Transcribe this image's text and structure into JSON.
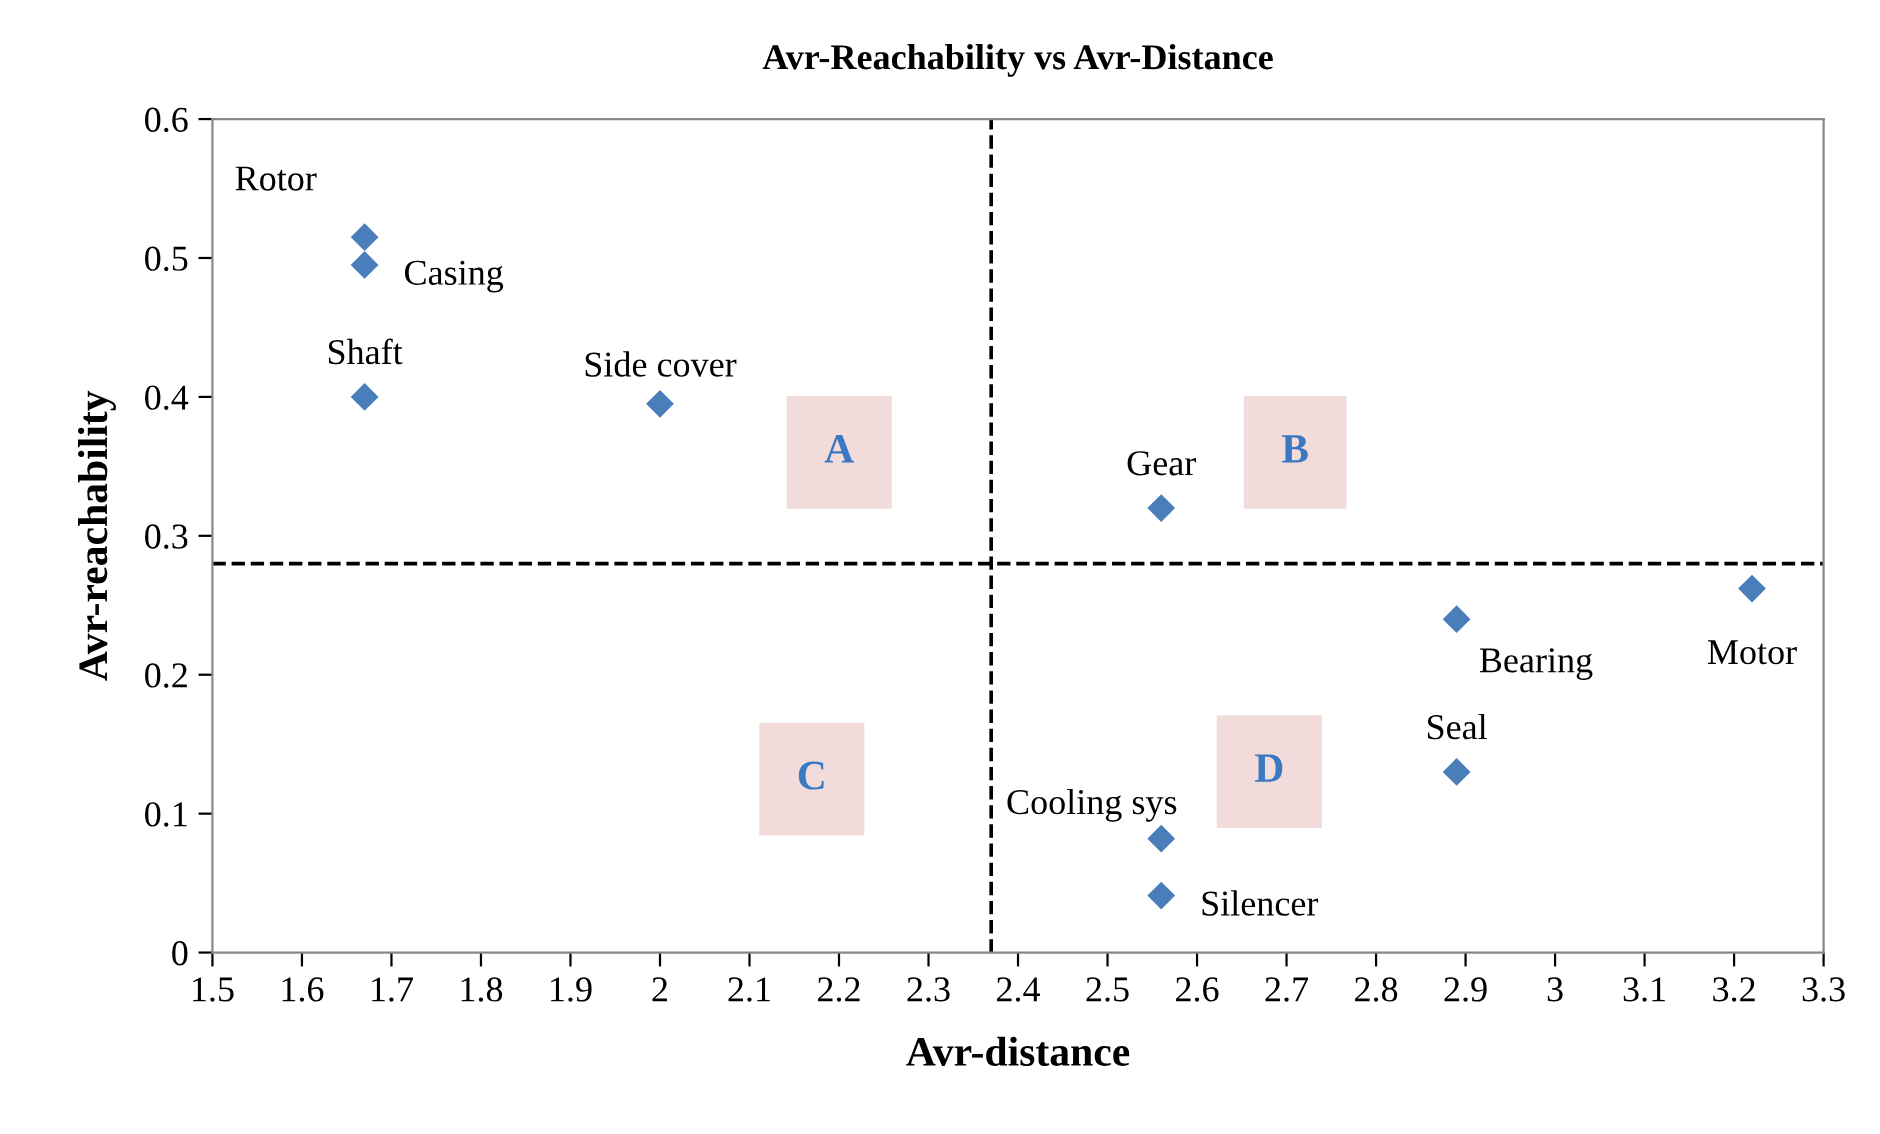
{
  "chart_data": {
    "type": "scatter",
    "title": "Avr-Reachability vs Avr-Distance",
    "xlabel": "Avr-distance",
    "ylabel": "Avr-reachability",
    "series": [
      {
        "color": "#4a7ebb",
        "x": [
          1.67,
          1.67,
          1.67,
          2.0,
          2.56,
          2.89,
          3.22,
          2.89,
          2.56,
          2.56
        ],
        "values": [
          0.515,
          0.495,
          0.4,
          0.395,
          0.32,
          0.24,
          0.262,
          0.13,
          0.082,
          0.041
        ],
        "value_labels": [
          "Rotor",
          "Casing",
          "Shaft",
          "Side cover",
          "Gear",
          "Bearing",
          "Motor",
          "Seal",
          "Cooling sys",
          "Silencer"
        ]
      }
    ],
    "marker": "diamond",
    "xlim": [
      1.5,
      3.3
    ],
    "ylim": [
      0,
      0.6
    ],
    "xticks": [
      1.5,
      1.6,
      1.7,
      1.8,
      1.9,
      {
        "value": 2,
        "label": "2"
      },
      2.1,
      2.2,
      2.3,
      2.4,
      2.5,
      2.6,
      2.7,
      2.8,
      2.9,
      {
        "value": 3,
        "label": "3"
      },
      3.1,
      3.2,
      3.3
    ],
    "yticks": [
      {
        "value": 0,
        "label": "0"
      },
      0.1,
      0.2,
      0.3,
      0.4,
      0.5,
      0.6
    ],
    "ref_lines": [
      {
        "axis": "x",
        "value": 2.37,
        "line_style": "dashed",
        "color": "#000000"
      },
      {
        "axis": "y",
        "value": 0.28,
        "line_style": "dashed",
        "color": "#000000"
      }
    ],
    "annotations": [
      "A",
      "B",
      "C",
      "D"
    ],
    "grid": false,
    "legend": false
  }
}
